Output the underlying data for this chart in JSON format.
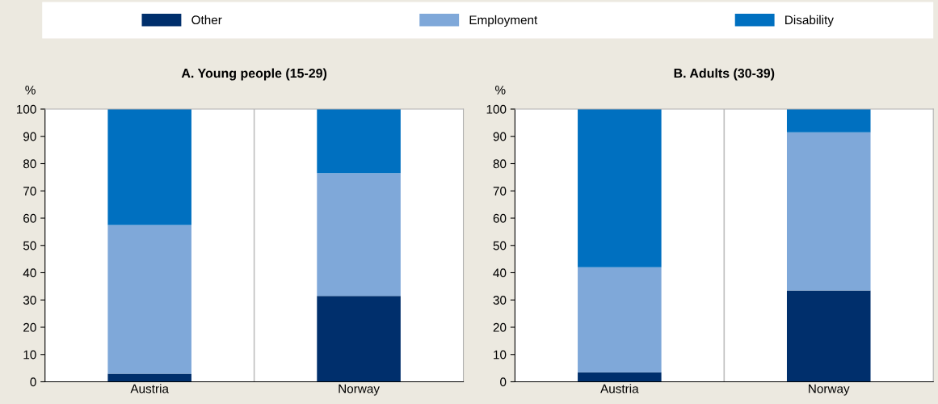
{
  "chart_data": [
    {
      "type": "bar",
      "title": "A. Young people (15-29)",
      "ylabel": "%",
      "stacked": true,
      "categories": [
        "Austria",
        "Norway"
      ],
      "ylim": [
        0,
        100
      ],
      "yticks": [
        0,
        10,
        20,
        30,
        40,
        50,
        60,
        70,
        80,
        90,
        100
      ],
      "grid": "x",
      "legend": "top",
      "series": [
        {
          "name": "Other",
          "color": "#002f6c",
          "values": [
            3,
            31.5
          ]
        },
        {
          "name": "Employment",
          "color": "#7fa8d9",
          "values": [
            54.5,
            45
          ]
        },
        {
          "name": "Disability",
          "color": "#0070c0",
          "values": [
            42.5,
            23.5
          ]
        }
      ]
    },
    {
      "type": "bar",
      "title": "B. Adults (30-39)",
      "ylabel": "%",
      "stacked": true,
      "categories": [
        "Austria",
        "Norway"
      ],
      "ylim": [
        0,
        100
      ],
      "yticks": [
        0,
        10,
        20,
        30,
        40,
        50,
        60,
        70,
        80,
        90,
        100
      ],
      "grid": "x",
      "series": [
        {
          "color": "#002f6c",
          "values": [
            3.5,
            33.5
          ]
        },
        {
          "color": "#7fa8d9",
          "values": [
            38.5,
            58
          ]
        },
        {
          "color": "#0070c0",
          "values": [
            58,
            8.5
          ]
        }
      ]
    }
  ]
}
